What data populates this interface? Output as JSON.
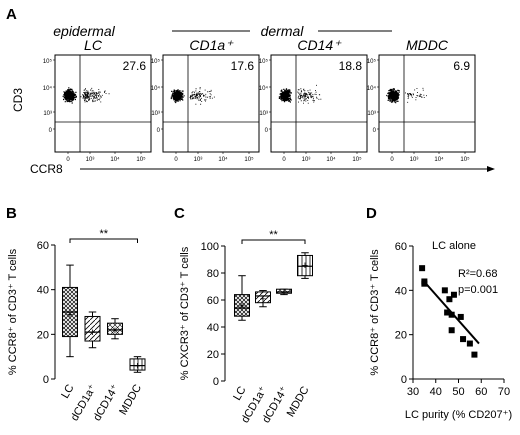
{
  "panel_labels": {
    "a": "A",
    "b": "B",
    "c": "C",
    "d": "D"
  },
  "panel_a": {
    "group_epidermal": "epidermal",
    "group_dermal": "dermal",
    "y_axis": "CD3",
    "x_axis": "CCR8",
    "y_ticks": [
      "10⁵",
      "10⁴",
      "10³",
      "0"
    ],
    "x_ticks": [
      "0",
      "10³",
      "10⁴",
      "10⁵"
    ]
  },
  "chart_data": [
    {
      "type": "scatter",
      "panel": "A",
      "plots": [
        {
          "title": "LC",
          "quadrant_percent": "27.6"
        },
        {
          "title": "CD1a⁺",
          "quadrant_percent": "17.6"
        },
        {
          "title": "CD14⁺",
          "quadrant_percent": "18.8"
        },
        {
          "title": "MDDC",
          "quadrant_percent": "6.9"
        }
      ]
    },
    {
      "type": "boxplot",
      "panel": "B",
      "ylabel": "% CCR8⁺ of CD3⁺ T cells",
      "ylim": [
        0,
        60
      ],
      "yticks": [
        "0",
        "20",
        "40",
        "60"
      ],
      "categories": [
        "LC",
        "dCD1a⁺",
        "dCD14⁺",
        "MDDC"
      ],
      "boxes": [
        {
          "min": 10,
          "q1": 19,
          "median": 30,
          "q3": 41,
          "max": 51,
          "mean": 29
        },
        {
          "min": 14,
          "q1": 17,
          "median": 21,
          "q3": 28,
          "max": 30,
          "mean": 21
        },
        {
          "min": 18,
          "q1": 20,
          "median": 22,
          "q3": 25,
          "max": 27,
          "mean": 22
        },
        {
          "min": 3,
          "q1": 4,
          "median": 6,
          "q3": 9,
          "max": 10,
          "mean": 6
        }
      ],
      "significance": {
        "from": "LC",
        "to": "MDDC",
        "label": "**"
      }
    },
    {
      "type": "boxplot",
      "panel": "C",
      "ylabel": "% CXCR3⁺ of CD3⁺ T cells",
      "ylim": [
        0,
        100
      ],
      "yticks": [
        "0",
        "20",
        "40",
        "60",
        "80",
        "100"
      ],
      "categories": [
        "LC",
        "dCD1a⁺",
        "dCD14⁺",
        "MDDC"
      ],
      "boxes": [
        {
          "min": 45,
          "q1": 48,
          "median": 54,
          "q3": 64,
          "max": 78,
          "mean": 56
        },
        {
          "min": 55,
          "q1": 58,
          "median": 63,
          "q3": 66,
          "max": 67,
          "mean": 61
        },
        {
          "min": 64,
          "q1": 65,
          "median": 66,
          "q3": 68,
          "max": 68,
          "mean": 66
        },
        {
          "min": 76,
          "q1": 78,
          "median": 85,
          "q3": 93,
          "max": 95,
          "mean": 86
        }
      ],
      "significance": {
        "from": "LC",
        "to": "MDDC",
        "label": "**"
      }
    },
    {
      "type": "scatter",
      "panel": "D",
      "title": "LC alone",
      "xlabel": "LC purity (% CD207⁺)",
      "ylabel": "% CCR8⁺ of CD3⁺ T cells",
      "xlim": [
        30,
        70
      ],
      "ylim": [
        0,
        60
      ],
      "xticks": [
        "30",
        "40",
        "50",
        "60",
        "70"
      ],
      "yticks": [
        "0",
        "20",
        "40",
        "60"
      ],
      "points": [
        {
          "x": 34,
          "y": 50
        },
        {
          "x": 35,
          "y": 44
        },
        {
          "x": 35,
          "y": 43
        },
        {
          "x": 44,
          "y": 40
        },
        {
          "x": 46,
          "y": 36
        },
        {
          "x": 45,
          "y": 30
        },
        {
          "x": 47,
          "y": 29
        },
        {
          "x": 48,
          "y": 38
        },
        {
          "x": 47,
          "y": 22
        },
        {
          "x": 51,
          "y": 28
        },
        {
          "x": 52,
          "y": 18
        },
        {
          "x": 55,
          "y": 16
        },
        {
          "x": 57,
          "y": 11
        }
      ],
      "fit": {
        "x1": 34,
        "y1": 45,
        "x2": 59,
        "y2": 16
      },
      "r2": "R²=0.68",
      "p": "p=0.001"
    }
  ]
}
